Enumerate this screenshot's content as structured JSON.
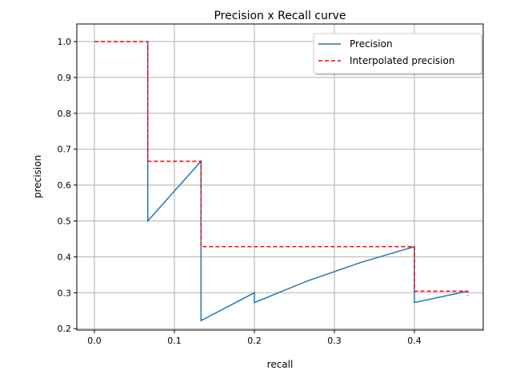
{
  "chart_data": {
    "type": "line",
    "title": "Precision x Recall curve",
    "xlabel": "recall",
    "ylabel": "precision",
    "xlim": [
      -0.022,
      0.486
    ],
    "ylim": [
      0.196,
      1.049
    ],
    "xticks": [
      0.0,
      0.1,
      0.2,
      0.3,
      0.4
    ],
    "xtick_labels": [
      "0.0",
      "0.1",
      "0.2",
      "0.3",
      "0.4"
    ],
    "yticks": [
      0.2,
      0.3,
      0.4,
      0.5,
      0.6,
      0.7,
      0.8,
      0.9,
      1.0
    ],
    "ytick_labels": [
      "0.2",
      "0.3",
      "0.4",
      "0.5",
      "0.6",
      "0.7",
      "0.8",
      "0.9",
      "1.0"
    ],
    "grid": true,
    "legend_position": "top-right",
    "series": [
      {
        "name": "Precision",
        "color": "#1f77b4",
        "style": "solid",
        "x": [
          0.0667,
          0.0667,
          0.1333,
          0.1333,
          0.2,
          0.2,
          0.2667,
          0.3333,
          0.4,
          0.4,
          0.4667
        ],
        "y": [
          1.0,
          0.5,
          0.6667,
          0.2222,
          0.3,
          0.2727,
          0.3333,
          0.3846,
          0.4286,
          0.2727,
          0.3043
        ]
      },
      {
        "name": "Interpolated precision",
        "color": "#ff0000",
        "style": "dashed",
        "x": [
          0.0,
          0.0667,
          0.0667,
          0.1333,
          0.1333,
          0.4,
          0.4,
          0.4667,
          0.4667
        ],
        "y": [
          1.0,
          1.0,
          0.6667,
          0.6667,
          0.4286,
          0.4286,
          0.3043,
          0.3043,
          0.2917
        ]
      }
    ]
  }
}
